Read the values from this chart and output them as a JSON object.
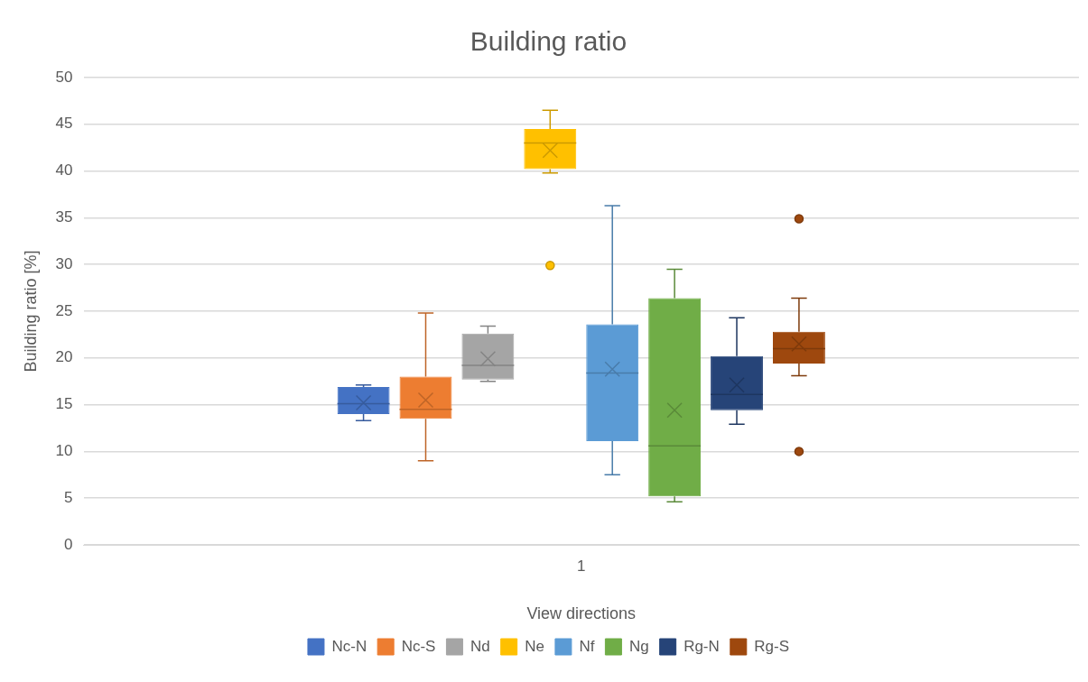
{
  "chart_data": {
    "type": "box",
    "title": "Building ratio",
    "xlabel": "View directions",
    "ylabel": "Building ratio [%]",
    "categories": [
      "1"
    ],
    "ylim": [
      0,
      50
    ],
    "yticks": [
      0,
      5,
      10,
      15,
      20,
      25,
      30,
      35,
      40,
      45,
      50
    ],
    "grid": "y",
    "legend": "bottom",
    "series": [
      {
        "name": "Nc-N",
        "color": "#4472c4",
        "boxes": [
          {
            "low": 13.3,
            "q1": 14.0,
            "median": 15.1,
            "q3": 16.9,
            "high": 17.1,
            "mean": 15.2
          }
        ]
      },
      {
        "name": "Nc-S",
        "color": "#ed7d31",
        "boxes": [
          {
            "low": 9.0,
            "q1": 13.5,
            "median": 14.5,
            "q3": 18.0,
            "high": 24.8,
            "mean": 15.5
          }
        ]
      },
      {
        "name": "Nd",
        "color": "#a5a5a5",
        "boxes": [
          {
            "low": 17.5,
            "q1": 17.7,
            "median": 19.2,
            "q3": 22.6,
            "high": 23.4,
            "mean": 19.9
          }
        ]
      },
      {
        "name": "Ne",
        "color": "#ffc000",
        "boxes": [
          {
            "low": 39.8,
            "q1": 40.2,
            "median": 43.0,
            "q3": 44.5,
            "high": 46.5,
            "mean": 42.2,
            "outliers": [
              29.9
            ]
          }
        ]
      },
      {
        "name": "Nf",
        "color": "#5b9bd5",
        "boxes": [
          {
            "low": 7.5,
            "q1": 11.1,
            "median": 18.4,
            "q3": 23.6,
            "high": 36.3,
            "mean": 18.8
          }
        ]
      },
      {
        "name": "Ng",
        "color": "#70ad47",
        "boxes": [
          {
            "low": 4.6,
            "q1": 5.2,
            "median": 10.6,
            "q3": 26.4,
            "high": 29.5,
            "mean": 14.4
          }
        ]
      },
      {
        "name": "Rg-N",
        "color": "#264478",
        "boxes": [
          {
            "low": 12.9,
            "q1": 14.4,
            "median": 16.1,
            "q3": 20.2,
            "high": 24.3,
            "mean": 17.1
          }
        ]
      },
      {
        "name": "Rg-S",
        "color": "#9e480e",
        "boxes": [
          {
            "low": 18.1,
            "q1": 19.4,
            "median": 21.0,
            "q3": 22.8,
            "high": 26.4,
            "mean": 21.5,
            "outliers": [
              34.9,
              10.0
            ]
          }
        ]
      }
    ]
  }
}
